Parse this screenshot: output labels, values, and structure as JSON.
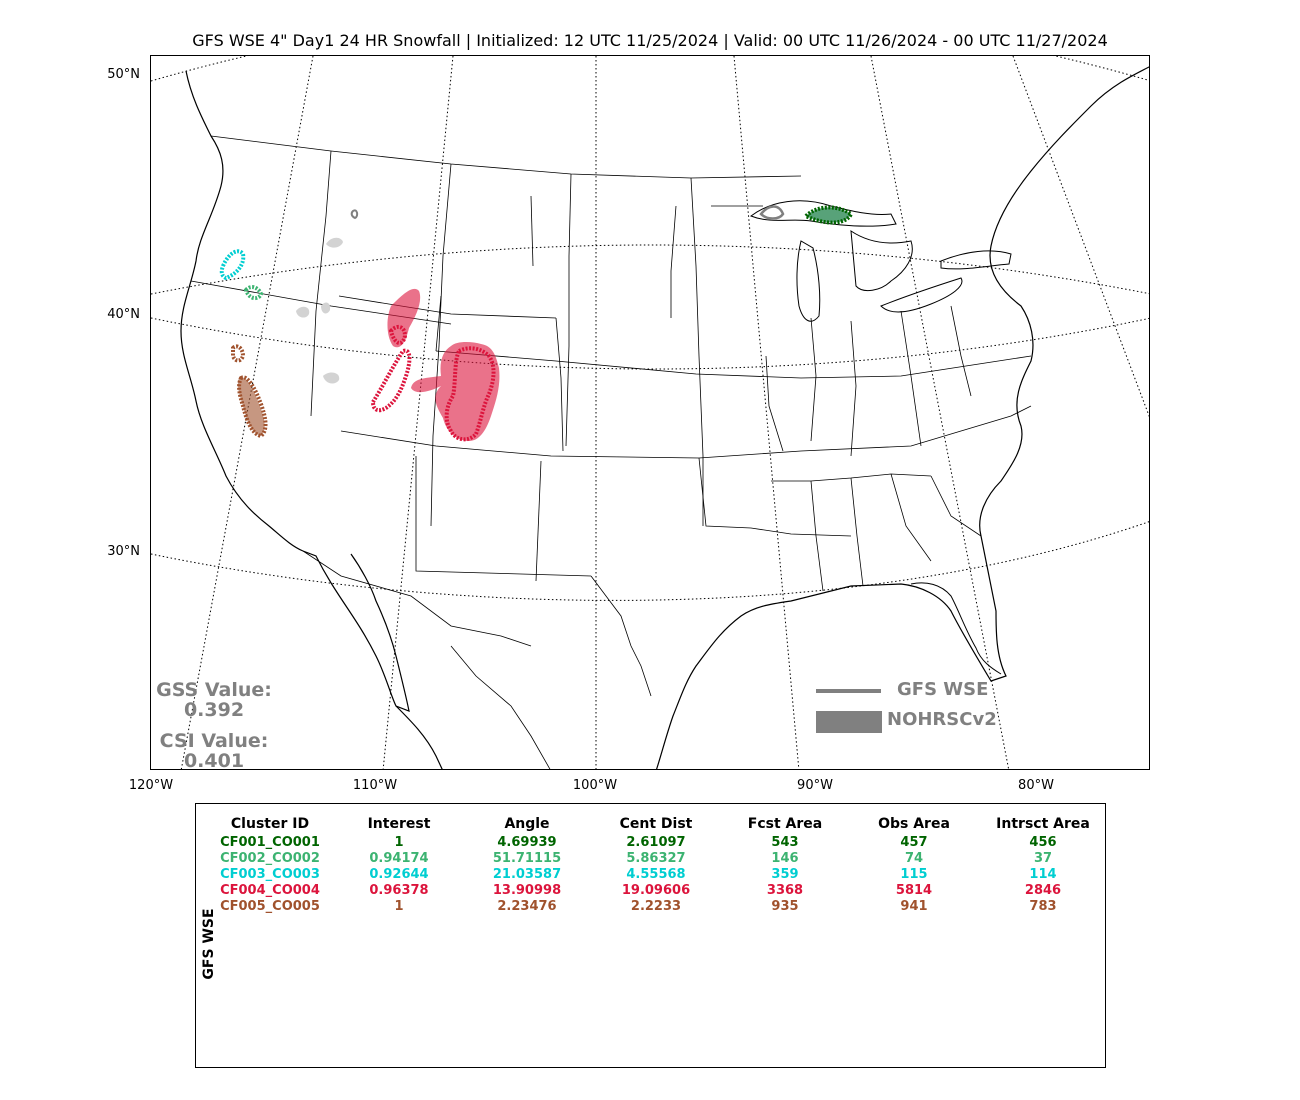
{
  "title": "GFS WSE 4\" Day1 24 HR Snowfall | Initialized: 12 UTC 11/25/2024 | Valid: 00 UTC 11/26/2024 - 00 UTC 11/27/2024",
  "axes": {
    "lat_labels": [
      "50°N",
      "40°N",
      "30°N"
    ],
    "lon_labels": [
      "120°W",
      "110°W",
      "100°W",
      "90°W",
      "80°W"
    ]
  },
  "stats": {
    "gss_label": "GSS Value:",
    "gss_value": "0.392",
    "csi_label": "CSI Value:",
    "csi_value": "0.401"
  },
  "legend": {
    "forecast_label": "GFS WSE",
    "observed_label": "NOHRSCv2",
    "color": "#808080"
  },
  "table": {
    "side_label": "GFS WSE",
    "headers": [
      "Cluster ID",
      "Interest",
      "Angle",
      "Cent Dist",
      "Fcst Area",
      "Obs Area",
      "Intrsct Area"
    ],
    "rows": [
      {
        "color": "#006400",
        "cells": [
          "CF001_CO001",
          "1",
          "4.69939",
          "2.61097",
          "543",
          "457",
          "456"
        ]
      },
      {
        "color": "#3CB371",
        "cells": [
          "CF002_CO002",
          "0.94174",
          "51.71115",
          "5.86327",
          "146",
          "74",
          "37"
        ]
      },
      {
        "color": "#00CED1",
        "cells": [
          "CF003_CO003",
          "0.92644",
          "21.03587",
          "4.55568",
          "359",
          "115",
          "114"
        ]
      },
      {
        "color": "#DC143C",
        "cells": [
          "CF004_CO004",
          "0.96378",
          "13.90998",
          "19.09606",
          "3368",
          "5814",
          "2846"
        ]
      },
      {
        "color": "#A0522D",
        "cells": [
          "CF005_CO005",
          "1",
          "2.23476",
          "2.2233",
          "935",
          "941",
          "783"
        ]
      }
    ]
  },
  "clusters": {
    "cluster_colors": [
      "#006400",
      "#3CB371",
      "#00CED1",
      "#DC143C",
      "#A0522D"
    ],
    "unmatched_color": "#C8C8C8"
  }
}
